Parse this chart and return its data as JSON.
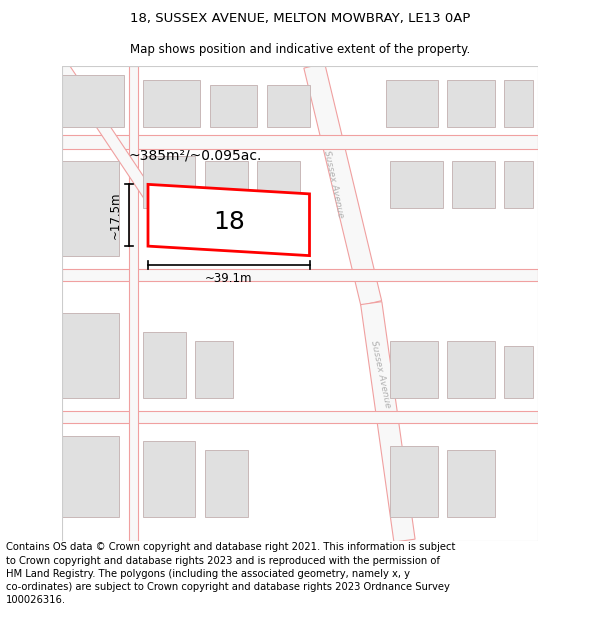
{
  "title": "18, SUSSEX AVENUE, MELTON MOWBRAY, LE13 0AP",
  "subtitle": "Map shows position and indicative extent of the property.",
  "footer": "Contains OS data © Crown copyright and database right 2021. This information is subject\nto Crown copyright and database rights 2023 and is reproduced with the permission of\nHM Land Registry. The polygons (including the associated geometry, namely x, y\nco-ordinates) are subject to Crown copyright and database rights 2023 Ordnance Survey\n100026316.",
  "bg_color": "#ffffff",
  "building_fill": "#e0e0e0",
  "building_edge": "#c8b8b8",
  "highlight_fill": "#ffffff",
  "highlight_edge": "#ff0000",
  "road_edge_color": "#f0a0a0",
  "road_fill": "#f8f8f8",
  "area_text": "~385m²/~0.095ac.",
  "number_text": "18",
  "dim_width": "~39.1m",
  "dim_height": "~17.5m",
  "sussex_avenue_label": "Sussex Avenue",
  "title_fontsize": 9.5,
  "subtitle_fontsize": 8.5,
  "footer_fontsize": 7.2
}
